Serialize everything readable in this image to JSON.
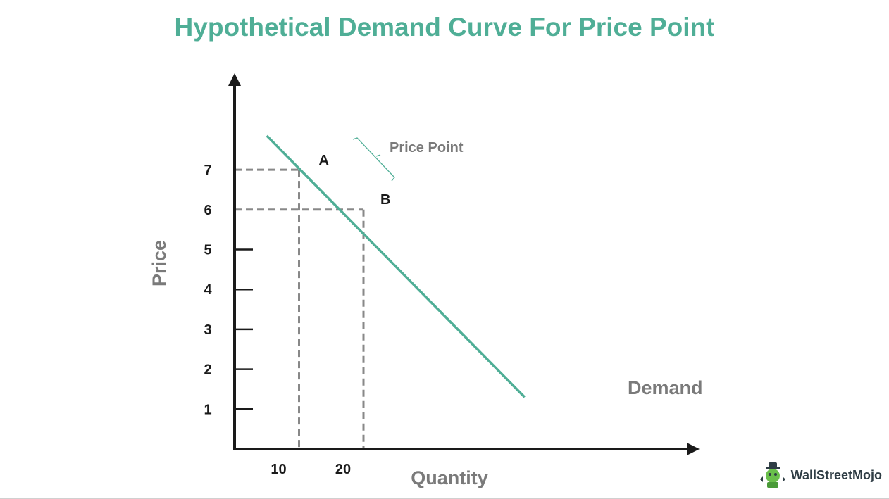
{
  "chart_data": {
    "type": "line",
    "title": "Hypothetical Demand Curve For Price Point",
    "xlabel": "Quantity",
    "ylabel": "Price",
    "series": [
      {
        "name": "Demand",
        "color": "#4fae96",
        "x": [
          5,
          45
        ],
        "y": [
          7.85,
          1.3
        ]
      }
    ],
    "x_ticks": [
      {
        "value": 10,
        "label": "10"
      },
      {
        "value": 20,
        "label": "20"
      }
    ],
    "y_ticks": [
      {
        "value": 1,
        "label": "1"
      },
      {
        "value": 2,
        "label": "2"
      },
      {
        "value": 3,
        "label": "3"
      },
      {
        "value": 4,
        "label": "4"
      },
      {
        "value": 5,
        "label": "5"
      },
      {
        "value": 6,
        "label": "6"
      },
      {
        "value": 7,
        "label": "7"
      }
    ],
    "points": [
      {
        "label": "A",
        "x": 10,
        "y": 7
      },
      {
        "label": "B",
        "x": 20,
        "y": 6
      }
    ],
    "annotations": [
      {
        "text": "Price Point"
      }
    ],
    "xlim": [
      0,
      55
    ],
    "ylim": [
      0,
      9.2
    ],
    "grid": false,
    "colors": {
      "title": "#4fae96",
      "axis": "#1a1a1a",
      "guide": "#888888",
      "label": "#7a7a7a"
    }
  },
  "logo": {
    "text": "WallStreetMojo"
  }
}
